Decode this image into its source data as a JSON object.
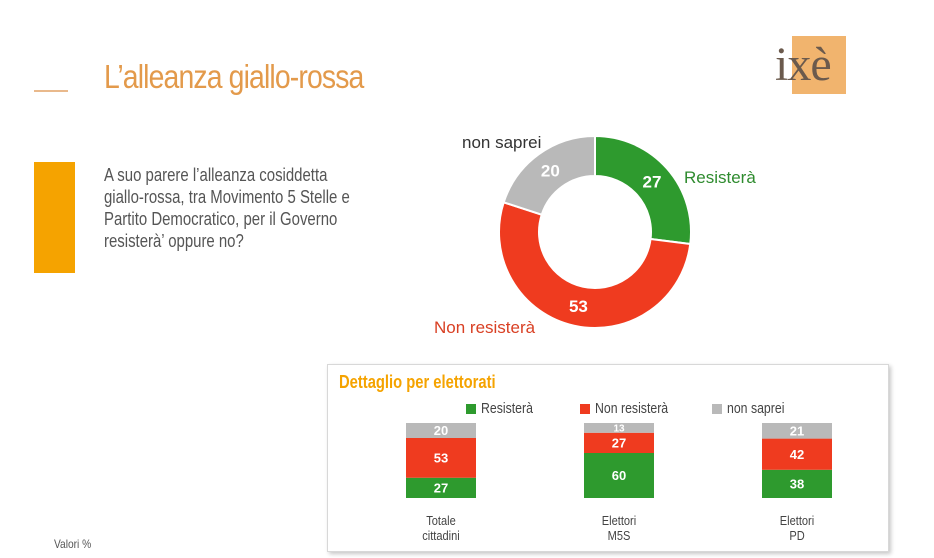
{
  "slide": {
    "title": "L’alleanza giallo-rossa",
    "logo_text": "ixè",
    "question": "A suo parere l’alleanza cosiddetta giallo-rossa, tra Movimento 5 Stelle e Partito Democratico, per il Governo resisterà’ oppure no?",
    "footnote": "Valori %"
  },
  "colors": {
    "accent_orange": "#f5a300",
    "title_orange": "#e39a4b",
    "green": "#2e9a2e",
    "red": "#ef3b1f",
    "gray": "#b9b9b9"
  },
  "detail": {
    "title": "Dettaglio per elettorati",
    "groups": [
      {
        "label_line1": "Totale",
        "label_line2": "cittadini"
      },
      {
        "label_line1": "Elettori",
        "label_line2": "M5S"
      },
      {
        "label_line1": "Elettori",
        "label_line2": "PD"
      }
    ]
  },
  "chart_data": [
    {
      "type": "pie",
      "donut": true,
      "labels": [
        "Resisterà",
        "Non resisterà",
        "non saprei"
      ],
      "values": [
        27,
        53,
        20
      ],
      "colors": [
        "#2e9a2e",
        "#ef3b1f",
        "#b9b9b9"
      ]
    },
    {
      "type": "bar",
      "stacked": true,
      "title": "Dettaglio per elettorati",
      "categories": [
        "Totale cittadini",
        "Elettori M5S",
        "Elettori PD"
      ],
      "series": [
        {
          "name": "Resisterà",
          "values": [
            27,
            60,
            38
          ],
          "color": "#2e9a2e"
        },
        {
          "name": "Non resisterà",
          "values": [
            53,
            27,
            42
          ],
          "color": "#ef3b1f"
        },
        {
          "name": "non saprei",
          "values": [
            20,
            13,
            21
          ],
          "color": "#b9b9b9"
        }
      ],
      "legend": "top"
    }
  ]
}
